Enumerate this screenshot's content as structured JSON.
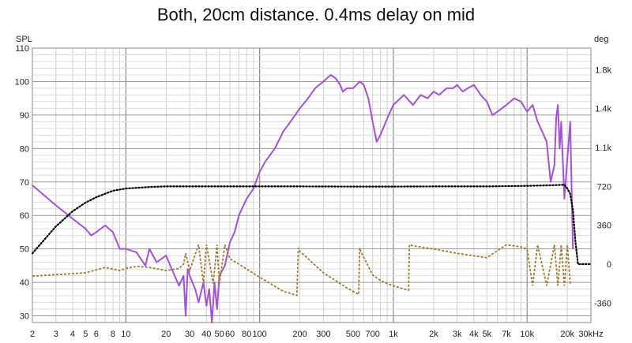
{
  "chart_data": {
    "type": "line",
    "title": "Both, 20cm distance. 0.4ms delay on mid",
    "xlabel": "Hz",
    "ylabel_left": "SPL",
    "ylabel_right": "deg",
    "x_scale": "log",
    "xlim": [
      2,
      30000
    ],
    "ylim_left": [
      28,
      110
    ],
    "ylim_right": [
      -540,
      2000
    ],
    "grid": true,
    "x_ticks": [
      {
        "v": 2,
        "label": "2"
      },
      {
        "v": 3,
        "label": "3"
      },
      {
        "v": 4,
        "label": "4"
      },
      {
        "v": 5,
        "label": "5"
      },
      {
        "v": 6,
        "label": "6"
      },
      {
        "v": 8,
        "label": "8"
      },
      {
        "v": 10,
        "label": "10"
      },
      {
        "v": 20,
        "label": "20"
      },
      {
        "v": 30,
        "label": "30"
      },
      {
        "v": 40,
        "label": "40"
      },
      {
        "v": 50,
        "label": "50"
      },
      {
        "v": 60,
        "label": "60"
      },
      {
        "v": 80,
        "label": "80"
      },
      {
        "v": 100,
        "label": "100"
      },
      {
        "v": 200,
        "label": "200"
      },
      {
        "v": 300,
        "label": "300"
      },
      {
        "v": 500,
        "label": "500"
      },
      {
        "v": 700,
        "label": "700"
      },
      {
        "v": 1000,
        "label": "1k"
      },
      {
        "v": 2000,
        "label": "2k"
      },
      {
        "v": 3000,
        "label": "3k"
      },
      {
        "v": 4000,
        "label": "4k"
      },
      {
        "v": 5000,
        "label": "5k"
      },
      {
        "v": 7000,
        "label": "7k"
      },
      {
        "v": 10000,
        "label": "10k"
      },
      {
        "v": 20000,
        "label": "20k"
      },
      {
        "v": 30000,
        "label": "30kHz"
      }
    ],
    "y_ticks_left": [
      30,
      40,
      50,
      60,
      70,
      80,
      90,
      100,
      110
    ],
    "y_ticks_right": [
      {
        "v": -360,
        "label": "-360"
      },
      {
        "v": 0,
        "label": "0"
      },
      {
        "v": 360,
        "label": "360"
      },
      {
        "v": 720,
        "label": "720"
      },
      {
        "v": 1080,
        "label": "1.1k"
      },
      {
        "v": 1440,
        "label": "1.4k"
      },
      {
        "v": 1800,
        "label": "1.8k"
      }
    ],
    "series": [
      {
        "axis": "left",
        "color": "#a64fd8",
        "style": "solid",
        "x": [
          2,
          3,
          4,
          5,
          5.5,
          6,
          7,
          8,
          9,
          10,
          12,
          14,
          15,
          17,
          20,
          22,
          25,
          27,
          28,
          29,
          30,
          33,
          35,
          38,
          40,
          42,
          44,
          46,
          48,
          50,
          55,
          60,
          65,
          70,
          80,
          90,
          100,
          110,
          130,
          150,
          170,
          200,
          230,
          260,
          300,
          340,
          370,
          400,
          420,
          450,
          500,
          560,
          600,
          650,
          700,
          750,
          800,
          900,
          1000,
          1200,
          1400,
          1600,
          1800,
          2000,
          2200,
          2500,
          2800,
          3000,
          3300,
          3600,
          4000,
          4500,
          5000,
          5500,
          6000,
          7000,
          8000,
          9000,
          10000,
          11000,
          12000,
          13000,
          14000,
          15000,
          16000,
          16500,
          17000,
          17500,
          18000,
          19000,
          20000,
          21000,
          22000
        ],
        "y": [
          69,
          63,
          59,
          56,
          54,
          55,
          57,
          55,
          50,
          50,
          49,
          45,
          50,
          46,
          48,
          44,
          39,
          42,
          30,
          44,
          42,
          38,
          34,
          40,
          33,
          38,
          28,
          40,
          32,
          42,
          45,
          52,
          55,
          60,
          65,
          68,
          73,
          76,
          80,
          85,
          88,
          92,
          95,
          98,
          100,
          102,
          101,
          99,
          97,
          98,
          98,
          100,
          99,
          95,
          88,
          82,
          84,
          89,
          93,
          96,
          93,
          96,
          95,
          97,
          96,
          98,
          98,
          99,
          97,
          98,
          99,
          96,
          94,
          90,
          91,
          93,
          95,
          94,
          91,
          93,
          88,
          85,
          82,
          70,
          75,
          89,
          93,
          80,
          88,
          65,
          77,
          88,
          50
        ]
      },
      {
        "axis": "right",
        "color": "#000000",
        "style": "dotted",
        "x": [
          2,
          3,
          4,
          5,
          6,
          8,
          10,
          15,
          20,
          30,
          50,
          100,
          200,
          500,
          1000,
          2000,
          5000,
          10000,
          15000,
          19000,
          20000,
          21000,
          22000,
          23000,
          24000,
          30000
        ],
        "y": [
          100,
          350,
          490,
          570,
          620,
          680,
          700,
          715,
          720,
          720,
          720,
          720,
          720,
          718,
          718,
          720,
          720,
          725,
          730,
          735,
          700,
          650,
          500,
          200,
          0,
          0
        ]
      },
      {
        "axis": "right",
        "color": "#a37a2c",
        "style": "dashed",
        "x": [
          2,
          5,
          7,
          9,
          10,
          12,
          15,
          20,
          25,
          27,
          28,
          30,
          35,
          38,
          40,
          45,
          48,
          50,
          55,
          60,
          70,
          100,
          150,
          190,
          195,
          200,
          300,
          450,
          550,
          560,
          570,
          700,
          800,
          900,
          1000,
          1200,
          1300,
          1320,
          1400,
          2000,
          3000,
          5000,
          7000,
          9000,
          10000,
          11000,
          12000,
          14000,
          16000,
          17000,
          18000,
          19000,
          20000,
          21000
        ],
        "y": [
          -110,
          -80,
          -30,
          -60,
          -40,
          -20,
          -30,
          -60,
          -40,
          0,
          100,
          -60,
          180,
          -180,
          180,
          -180,
          180,
          -180,
          180,
          50,
          0,
          -120,
          -250,
          -290,
          150,
          120,
          -80,
          -220,
          -280,
          150,
          120,
          -100,
          -150,
          -180,
          -200,
          -230,
          -240,
          180,
          170,
          140,
          100,
          60,
          180,
          160,
          140,
          -200,
          180,
          -200,
          180,
          -200,
          180,
          -200,
          180,
          -180
        ]
      }
    ]
  }
}
